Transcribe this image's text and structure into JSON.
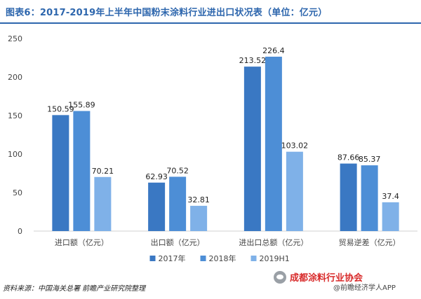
{
  "header": {
    "title": "图表6：2017-2019年上半年中国粉末涂料行业进出口状况表（单位：亿元）"
  },
  "footer": {
    "source": "资料来源：中国海关总署 前瞻产业研究院整理",
    "watermark_text": "成都涂料行业协会",
    "watermark_app": "@前瞻经济学人APP"
  },
  "chart_data": {
    "type": "bar",
    "categories": [
      "进口额（亿元）",
      "出口额（亿元）",
      "进出口总额（亿元）",
      "贸易逆差（亿元）"
    ],
    "series": [
      {
        "name": "2017年",
        "values": [
          150.59,
          62.93,
          213.52,
          87.66
        ],
        "labels": [
          "150.59",
          "62.93",
          "213.52",
          "87.66"
        ],
        "color": "#3a78c3"
      },
      {
        "name": "2018年",
        "values": [
          155.89,
          70.52,
          226.4,
          85.37
        ],
        "labels": [
          "155.89",
          "70.52",
          "226.4",
          "85.37"
        ],
        "color": "#4d8ed6"
      },
      {
        "name": "2019H1",
        "values": [
          70.21,
          32.81,
          103.02,
          37.4
        ],
        "labels": [
          "70.21",
          "32.81",
          "103.02",
          "37.4"
        ],
        "color": "#7fb1e8"
      }
    ],
    "yticks": [
      0,
      50,
      100,
      150,
      200,
      250
    ],
    "ylim": [
      0,
      250
    ],
    "grid": false,
    "legend": "bottom-center"
  }
}
